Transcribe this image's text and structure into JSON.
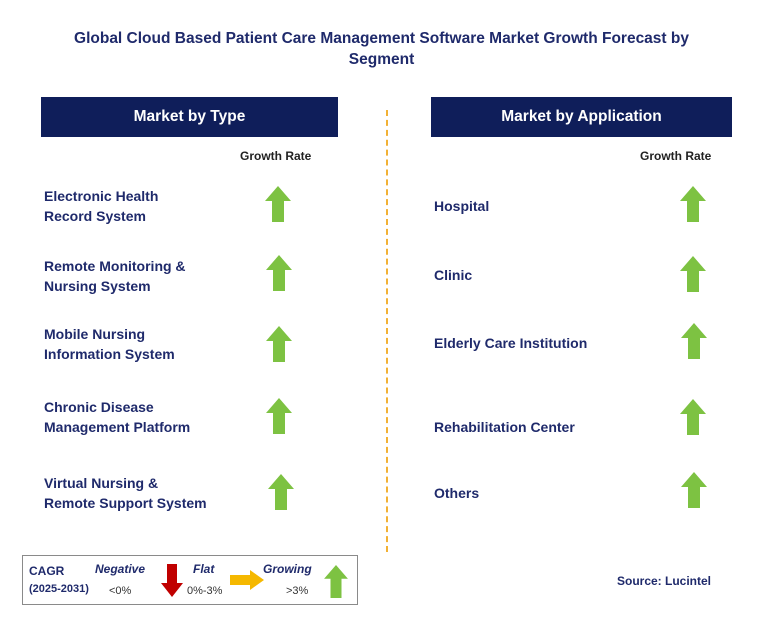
{
  "title": "Global Cloud Based Patient Care Management Software Market Growth Forecast by Segment",
  "left_panel": {
    "header": "Market by Type",
    "growth_label": "Growth Rate",
    "rows": [
      {
        "line1": "Electronic Health",
        "line2": "Record System",
        "trend": "growing"
      },
      {
        "line1": "Remote Monitoring &",
        "line2": "Nursing System",
        "trend": "growing"
      },
      {
        "line1": "Mobile Nursing",
        "line2": "Information System",
        "trend": "growing"
      },
      {
        "line1": "Chronic Disease",
        "line2": "Management Platform",
        "trend": "growing"
      },
      {
        "line1": "Virtual Nursing &",
        "line2": "Remote Support System",
        "trend": "growing"
      }
    ]
  },
  "right_panel": {
    "header": "Market by Application",
    "growth_label": "Growth Rate",
    "rows": [
      {
        "label": "Hospital",
        "trend": "growing"
      },
      {
        "label": "Clinic",
        "trend": "growing"
      },
      {
        "label": "Elderly Care Institution",
        "trend": "growing"
      },
      {
        "label": "Rehabilitation Center",
        "trend": "growing"
      },
      {
        "label": "Others",
        "trend": "growing"
      }
    ]
  },
  "legend": {
    "cagr": "CAGR",
    "period": "(2025-2031)",
    "negative_label": "Negative",
    "negative_value": "<0%",
    "flat_label": "Flat",
    "flat_value": "0%-3%",
    "growing_label": "Growing",
    "growing_value": ">3%"
  },
  "source": "Source: Lucintel",
  "colors": {
    "header_bg": "#0f1e5a",
    "title_text": "#1f2a6b",
    "growing_arrow": "#7dc242",
    "negative_arrow": "#c00000",
    "flat_arrow": "#f5b800",
    "divider": "#f2b134"
  }
}
